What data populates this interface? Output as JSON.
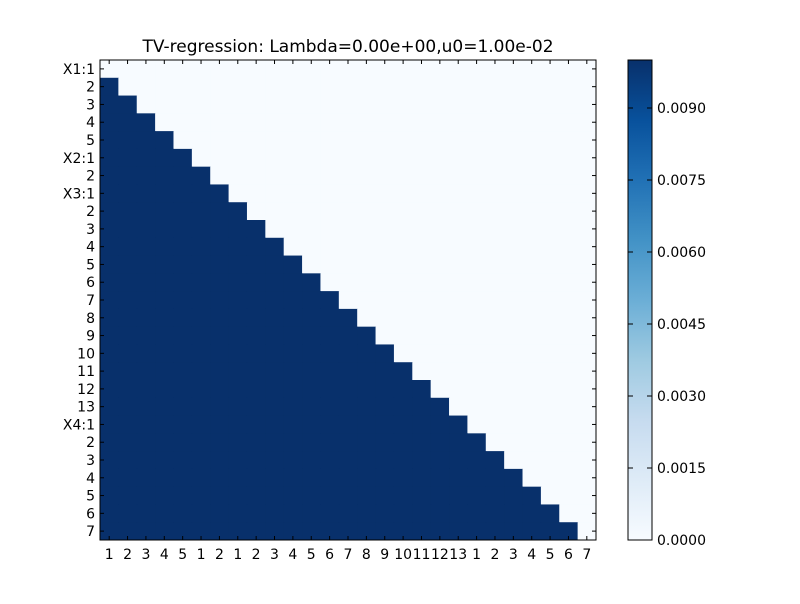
{
  "chart_data": {
    "type": "heatmap",
    "title": "TV-regression: Lambda=0.00e+00,u0=1.00e-02",
    "xlabel": "",
    "ylabel": "",
    "row_labels": [
      "X1:1",
      "2",
      "3",
      "4",
      "5",
      "X2:1",
      "2",
      "X3:1",
      "2",
      "3",
      "4",
      "5",
      "6",
      "7",
      "8",
      "9",
      "10",
      "11",
      "12",
      "13",
      "X4:1",
      "2",
      "3",
      "4",
      "5",
      "6",
      "7"
    ],
    "col_labels": [
      "1",
      "2",
      "3",
      "4",
      "5",
      "1",
      "2",
      "1",
      "2",
      "3",
      "4",
      "5",
      "6",
      "7",
      "8",
      "9",
      "10",
      "11",
      "12",
      "13",
      "1",
      "2",
      "3",
      "4",
      "5",
      "6",
      "7"
    ],
    "pattern": "strictly_lower_triangular",
    "low_value": 0.0,
    "high_value": 0.01,
    "colorbar": {
      "min": 0.0,
      "max": 0.01,
      "ticks": [
        "0.0000",
        "0.0015",
        "0.0030",
        "0.0045",
        "0.0060",
        "0.0075",
        "0.0090"
      ],
      "colormap": "Blues",
      "colors": [
        "#f7fbff",
        "#deebf7",
        "#c6dbef",
        "#9ecae1",
        "#6baed6",
        "#4292c6",
        "#2171b5",
        "#08519c",
        "#08306b"
      ]
    },
    "grid": false,
    "legend": "colorbar-right"
  }
}
